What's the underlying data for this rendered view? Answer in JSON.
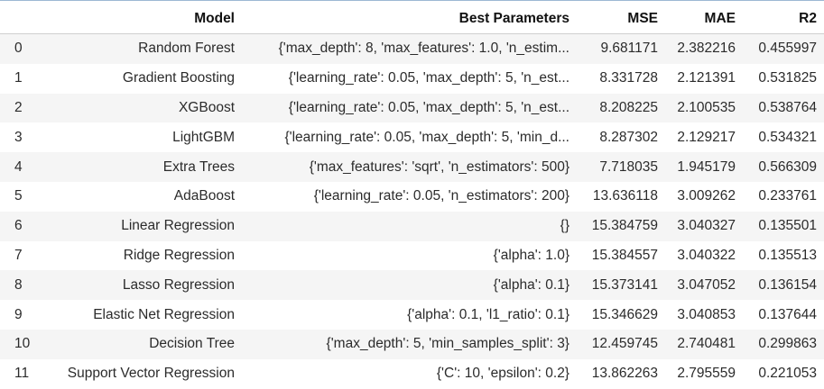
{
  "table": {
    "columns": {
      "index": "",
      "model": "Model",
      "params": "Best Parameters",
      "mse": "MSE",
      "mae": "MAE",
      "r2": "R2"
    },
    "rows": [
      {
        "index": "0",
        "model": "Random Forest",
        "params": "{'max_depth': 8, 'max_features': 1.0, 'n_estim...",
        "mse": "9.681171",
        "mae": "2.382216",
        "r2": "0.455997"
      },
      {
        "index": "1",
        "model": "Gradient Boosting",
        "params": "{'learning_rate': 0.05, 'max_depth': 5, 'n_est...",
        "mse": "8.331728",
        "mae": "2.121391",
        "r2": "0.531825"
      },
      {
        "index": "2",
        "model": "XGBoost",
        "params": "{'learning_rate': 0.05, 'max_depth': 5, 'n_est...",
        "mse": "8.208225",
        "mae": "2.100535",
        "r2": "0.538764"
      },
      {
        "index": "3",
        "model": "LightGBM",
        "params": "{'learning_rate': 0.05, 'max_depth': 5, 'min_d...",
        "mse": "8.287302",
        "mae": "2.129217",
        "r2": "0.534321"
      },
      {
        "index": "4",
        "model": "Extra Trees",
        "params": "{'max_features': 'sqrt', 'n_estimators': 500}",
        "mse": "7.718035",
        "mae": "1.945179",
        "r2": "0.566309"
      },
      {
        "index": "5",
        "model": "AdaBoost",
        "params": "{'learning_rate': 0.05, 'n_estimators': 200}",
        "mse": "13.636118",
        "mae": "3.009262",
        "r2": "0.233761"
      },
      {
        "index": "6",
        "model": "Linear Regression",
        "params": "{}",
        "mse": "15.384759",
        "mae": "3.040327",
        "r2": "0.135501"
      },
      {
        "index": "7",
        "model": "Ridge Regression",
        "params": "{'alpha': 1.0}",
        "mse": "15.384557",
        "mae": "3.040322",
        "r2": "0.135513"
      },
      {
        "index": "8",
        "model": "Lasso Regression",
        "params": "{'alpha': 0.1}",
        "mse": "15.373141",
        "mae": "3.047052",
        "r2": "0.136154"
      },
      {
        "index": "9",
        "model": "Elastic Net Regression",
        "params": "{'alpha': 0.1, 'l1_ratio': 0.1}",
        "mse": "15.346629",
        "mae": "3.040853",
        "r2": "0.137644"
      },
      {
        "index": "10",
        "model": "Decision Tree",
        "params": "{'max_depth': 5, 'min_samples_split': 3}",
        "mse": "12.459745",
        "mae": "2.740481",
        "r2": "0.299863"
      },
      {
        "index": "11",
        "model": "Support Vector Regression",
        "params": "{'C': 10, 'epsilon': 0.2}",
        "mse": "13.862263",
        "mae": "2.795559",
        "r2": "0.221053"
      }
    ]
  }
}
